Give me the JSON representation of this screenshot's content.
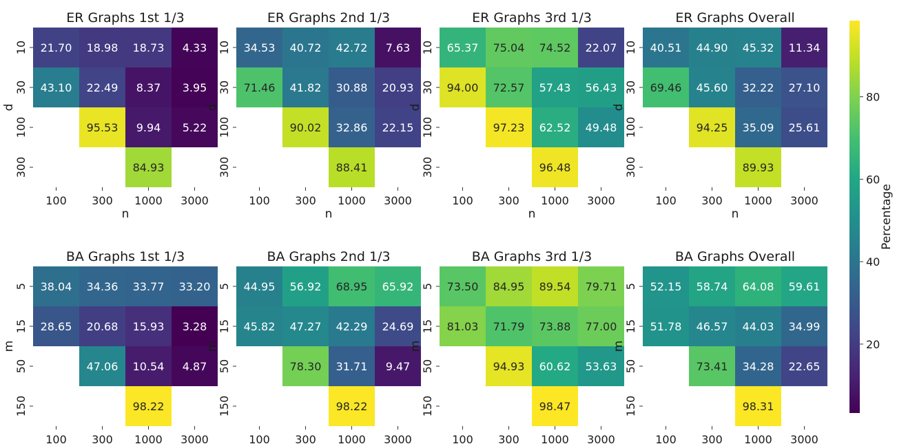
{
  "chart_data": [
    {
      "type": "heatmap",
      "title": "ER Graphs 1st 1/3",
      "xlabel": "n",
      "ylabel": "d",
      "x_categories": [
        "100",
        "300",
        "1000",
        "3000"
      ],
      "y_categories": [
        "10",
        "30",
        "100",
        "300"
      ],
      "values": [
        [
          21.7,
          18.98,
          18.73,
          4.33
        ],
        [
          43.1,
          22.49,
          8.37,
          3.95
        ],
        [
          null,
          95.53,
          9.94,
          5.22
        ],
        [
          null,
          null,
          84.93,
          null
        ]
      ],
      "labels": [
        [
          "21.70",
          "18.98",
          "18.73",
          "4.33"
        ],
        [
          "43.10",
          "22.49",
          "8.37",
          "3.95"
        ],
        [
          null,
          "95.53",
          "9.94",
          "5.22"
        ],
        [
          null,
          null,
          "84.93",
          null
        ]
      ]
    },
    {
      "type": "heatmap",
      "title": "ER Graphs 2nd 1/3",
      "xlabel": "n",
      "ylabel": "d",
      "x_categories": [
        "100",
        "300",
        "1000",
        "3000"
      ],
      "y_categories": [
        "10",
        "30",
        "100",
        "300"
      ],
      "values": [
        [
          34.53,
          40.72,
          42.72,
          7.63
        ],
        [
          71.46,
          41.82,
          30.88,
          20.93
        ],
        [
          null,
          90.02,
          32.86,
          22.15
        ],
        [
          null,
          null,
          88.41,
          null
        ]
      ],
      "labels": [
        [
          "34.53",
          "40.72",
          "42.72",
          "7.63"
        ],
        [
          "71.46",
          "41.82",
          "30.88",
          "20.93"
        ],
        [
          null,
          "90.02",
          "32.86",
          "22.15"
        ],
        [
          null,
          null,
          "88.41",
          null
        ]
      ]
    },
    {
      "type": "heatmap",
      "title": "ER Graphs 3rd 1/3",
      "xlabel": "n",
      "ylabel": "d",
      "x_categories": [
        "100",
        "300",
        "1000",
        "3000"
      ],
      "y_categories": [
        "10",
        "30",
        "100",
        "300"
      ],
      "values": [
        [
          65.37,
          75.04,
          74.52,
          22.07
        ],
        [
          94.0,
          72.57,
          57.43,
          56.43
        ],
        [
          null,
          97.23,
          62.52,
          49.48
        ],
        [
          null,
          null,
          96.48,
          null
        ]
      ],
      "labels": [
        [
          "65.37",
          "75.04",
          "74.52",
          "22.07"
        ],
        [
          "94.00",
          "72.57",
          "57.43",
          "56.43"
        ],
        [
          null,
          "97.23",
          "62.52",
          "49.48"
        ],
        [
          null,
          null,
          "96.48",
          null
        ]
      ]
    },
    {
      "type": "heatmap",
      "title": "ER Graphs Overall",
      "xlabel": "n",
      "ylabel": "d",
      "x_categories": [
        "100",
        "300",
        "1000",
        "3000"
      ],
      "y_categories": [
        "10",
        "30",
        "100",
        "300"
      ],
      "values": [
        [
          40.51,
          44.9,
          45.32,
          11.34
        ],
        [
          69.46,
          45.6,
          32.22,
          27.1
        ],
        [
          null,
          94.25,
          35.09,
          25.61
        ],
        [
          null,
          null,
          89.93,
          null
        ]
      ],
      "labels": [
        [
          "40.51",
          "44.90",
          "45.32",
          "11.34"
        ],
        [
          "69.46",
          "45.60",
          "32.22",
          "27.10"
        ],
        [
          null,
          "94.25",
          "35.09",
          "25.61"
        ],
        [
          null,
          null,
          "89.93",
          null
        ]
      ]
    },
    {
      "type": "heatmap",
      "title": "BA Graphs 1st 1/3",
      "xlabel": "n",
      "ylabel": "m",
      "x_categories": [
        "100",
        "300",
        "1000",
        "3000"
      ],
      "y_categories": [
        "5",
        "15",
        "50",
        "150"
      ],
      "values": [
        [
          38.04,
          34.36,
          33.77,
          33.2
        ],
        [
          28.65,
          20.68,
          15.93,
          3.28
        ],
        [
          null,
          47.06,
          10.54,
          4.87
        ],
        [
          null,
          null,
          98.22,
          null
        ]
      ],
      "labels": [
        [
          "38.04",
          "34.36",
          "33.77",
          "33.20"
        ],
        [
          "28.65",
          "20.68",
          "15.93",
          "3.28"
        ],
        [
          null,
          "47.06",
          "10.54",
          "4.87"
        ],
        [
          null,
          null,
          "98.22",
          null
        ]
      ]
    },
    {
      "type": "heatmap",
      "title": "BA Graphs 2nd 1/3",
      "xlabel": "n",
      "ylabel": "m",
      "x_categories": [
        "100",
        "300",
        "1000",
        "3000"
      ],
      "y_categories": [
        "5",
        "15",
        "50",
        "150"
      ],
      "values": [
        [
          44.95,
          56.92,
          68.95,
          65.92
        ],
        [
          45.82,
          47.27,
          42.29,
          24.69
        ],
        [
          null,
          78.3,
          31.71,
          9.47
        ],
        [
          null,
          null,
          98.22,
          null
        ]
      ],
      "labels": [
        [
          "44.95",
          "56.92",
          "68.95",
          "65.92"
        ],
        [
          "45.82",
          "47.27",
          "42.29",
          "24.69"
        ],
        [
          null,
          "78.30",
          "31.71",
          "9.47"
        ],
        [
          null,
          null,
          "98.22",
          null
        ]
      ]
    },
    {
      "type": "heatmap",
      "title": "BA Graphs 3rd 1/3",
      "xlabel": "n",
      "ylabel": "m",
      "x_categories": [
        "100",
        "300",
        "1000",
        "3000"
      ],
      "y_categories": [
        "5",
        "15",
        "50",
        "150"
      ],
      "values": [
        [
          73.5,
          84.95,
          89.54,
          79.71
        ],
        [
          81.03,
          71.79,
          73.88,
          77.0
        ],
        [
          null,
          94.93,
          60.62,
          53.63
        ],
        [
          null,
          null,
          98.47,
          null
        ]
      ],
      "labels": [
        [
          "73.50",
          "84.95",
          "89.54",
          "79.71"
        ],
        [
          "81.03",
          "71.79",
          "73.88",
          "77.00"
        ],
        [
          null,
          "94.93",
          "60.62",
          "53.63"
        ],
        [
          null,
          null,
          "98.47",
          null
        ]
      ]
    },
    {
      "type": "heatmap",
      "title": "BA Graphs Overall",
      "xlabel": "n",
      "ylabel": "m",
      "x_categories": [
        "100",
        "300",
        "1000",
        "3000"
      ],
      "y_categories": [
        "5",
        "15",
        "50",
        "150"
      ],
      "values": [
        [
          52.15,
          58.74,
          64.08,
          59.61
        ],
        [
          51.78,
          46.57,
          44.03,
          34.99
        ],
        [
          null,
          73.41,
          34.28,
          22.65
        ],
        [
          null,
          null,
          98.31,
          null
        ]
      ],
      "labels": [
        [
          "52.15",
          "58.74",
          "64.08",
          "59.61"
        ],
        [
          "51.78",
          "46.57",
          "44.03",
          "34.99"
        ],
        [
          null,
          "73.41",
          "34.28",
          "22.65"
        ],
        [
          null,
          null,
          "98.31",
          null
        ]
      ]
    }
  ],
  "colorbar": {
    "label": "Percentage",
    "colormap": "viridis",
    "vmin": 3.28,
    "vmax": 98.47,
    "ticks": [
      20,
      40,
      60,
      80
    ],
    "tick_labels": [
      "20",
      "40",
      "60",
      "80"
    ]
  }
}
